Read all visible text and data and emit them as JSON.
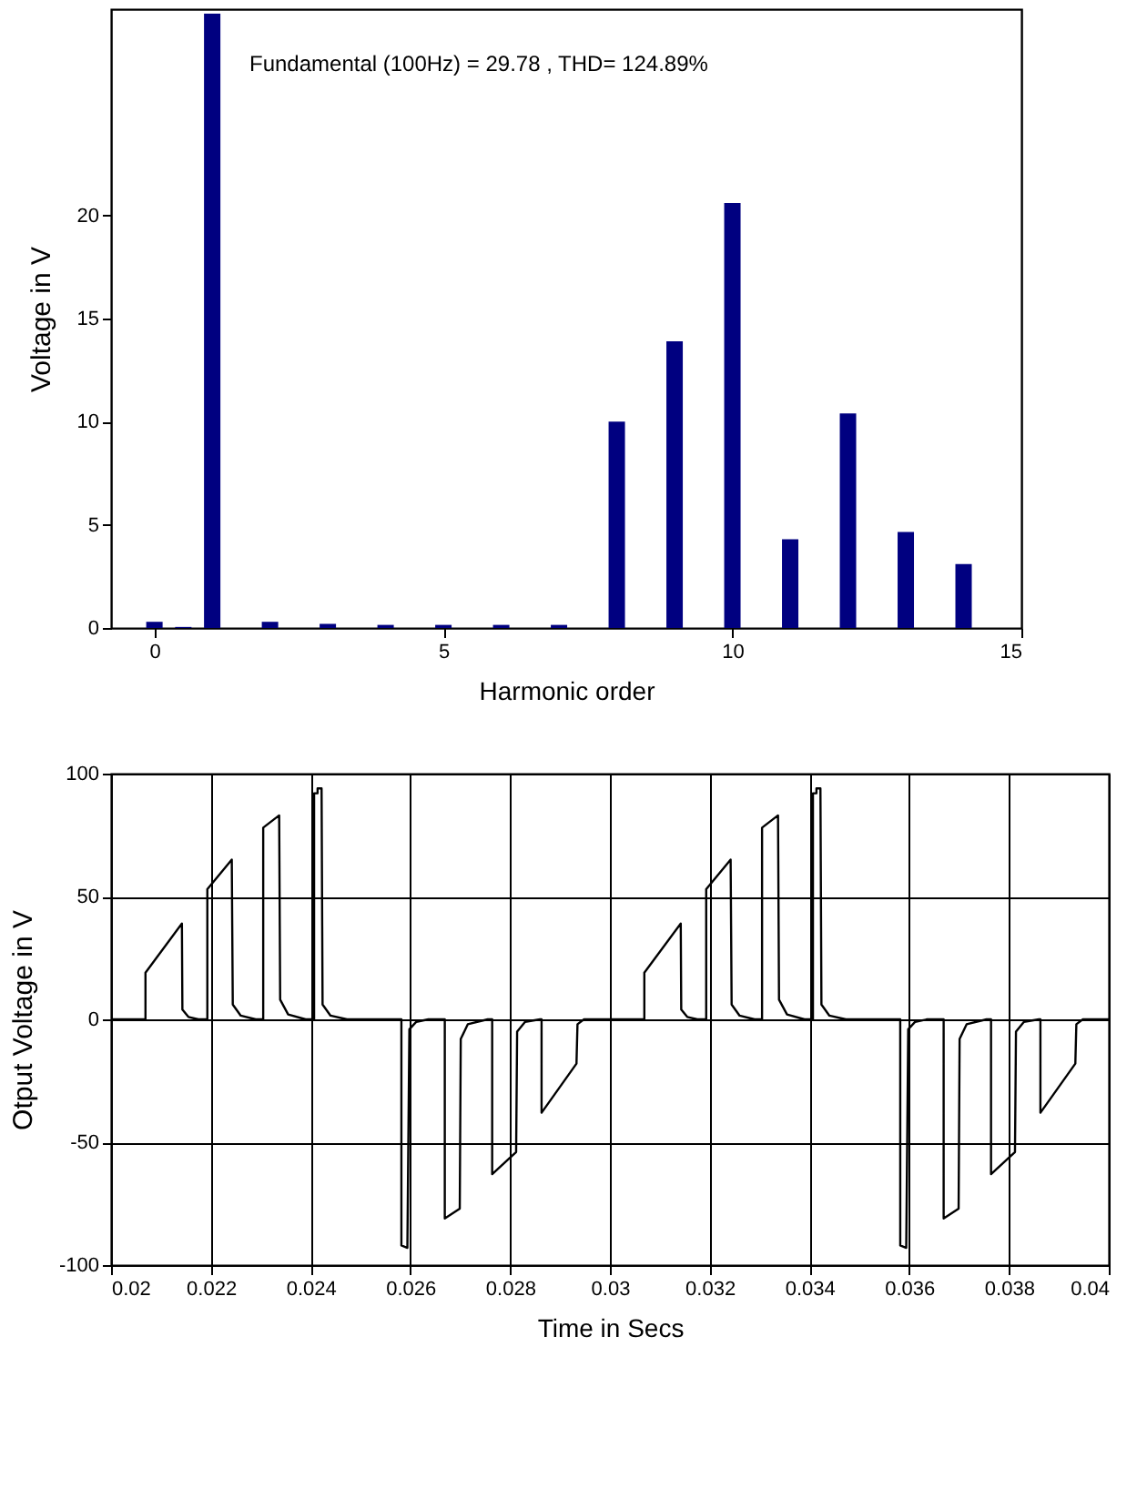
{
  "chart_data": [
    {
      "type": "bar",
      "x": [
        0,
        0.5,
        1,
        2,
        3,
        4,
        5,
        6,
        7,
        8,
        9,
        10,
        11,
        12,
        13,
        14
      ],
      "values": [
        0.3,
        0.05,
        29.78,
        0.3,
        0.2,
        0.15,
        0.15,
        0.15,
        0.15,
        10.0,
        13.9,
        20.6,
        4.3,
        10.4,
        4.65,
        3.1
      ],
      "color": "#000080",
      "xlabel": "Harmonic order",
      "ylabel": "Voltage in V",
      "xlim": [
        -0.75,
        15
      ],
      "ylim": [
        0,
        30
      ],
      "xticks": [
        0,
        5,
        10,
        15
      ],
      "yticks": [
        0,
        5,
        10,
        15,
        20
      ],
      "annotations": [
        "Fundamental (100Hz) = 29.78 , THD= 124.89%"
      ]
    },
    {
      "type": "line",
      "series": [
        {
          "color": "#000000",
          "x": [
            0.02,
            0.02069,
            0.02069,
            0.02142,
            0.02143,
            0.02155,
            0.02175,
            0.02193,
            0.02193,
            0.02242,
            0.02244,
            0.0226,
            0.0229,
            0.02305,
            0.02305,
            0.02337,
            0.02339,
            0.02355,
            0.0239,
            0.02407,
            0.02407,
            0.02414,
            0.02414,
            0.02422,
            0.02424,
            0.0244,
            0.02473,
            0.02582,
            0.02582,
            0.02594,
            0.02598,
            0.02612,
            0.02636,
            0.02669,
            0.02669,
            0.02699,
            0.02701,
            0.02715,
            0.02755,
            0.02764,
            0.02764,
            0.02812,
            0.02814,
            0.0283,
            0.0286,
            0.02863,
            0.02863,
            0.02933,
            0.02935,
            0.02948,
            0.03069,
            0.03069,
            0.03142,
            0.03143,
            0.03155,
            0.03175,
            0.03193,
            0.03193,
            0.03242,
            0.03244,
            0.0326,
            0.0329,
            0.03305,
            0.03305,
            0.03337,
            0.03339,
            0.03355,
            0.0339,
            0.03407,
            0.03407,
            0.03414,
            0.03414,
            0.03422,
            0.03424,
            0.0344,
            0.03473,
            0.03582,
            0.03582,
            0.03594,
            0.03598,
            0.03612,
            0.03636,
            0.03669,
            0.03669,
            0.03699,
            0.03701,
            0.03715,
            0.03755,
            0.03764,
            0.03764,
            0.03812,
            0.03814,
            0.0383,
            0.0386,
            0.03863,
            0.03863,
            0.03933,
            0.03935,
            0.03948,
            0.04
          ],
          "values": [
            0,
            0,
            19,
            39,
            4,
            1,
            0,
            0,
            53,
            65,
            6,
            1.5,
            0,
            0,
            78,
            83,
            8,
            2,
            0,
            0,
            92,
            92,
            94,
            94,
            6,
            1.5,
            0,
            0,
            -92,
            -93,
            -4,
            -1,
            0,
            0,
            -81,
            -77,
            -8,
            -2,
            0,
            0,
            -63,
            -54,
            -5,
            -1,
            0,
            0,
            -38,
            -18,
            -2,
            0,
            0,
            19,
            39,
            4,
            1,
            0,
            0,
            53,
            65,
            6,
            1.5,
            0,
            0,
            78,
            83,
            8,
            2,
            0,
            0,
            92,
            92,
            94,
            94,
            6,
            1.5,
            0,
            0,
            -92,
            -93,
            -4,
            -1,
            0,
            0,
            -81,
            -77,
            -8,
            -2,
            0,
            0,
            -63,
            -54,
            -5,
            -1,
            0,
            0,
            -38,
            -18,
            -2,
            0,
            0
          ]
        }
      ],
      "xlabel": "Time in Secs",
      "ylabel": "Otput Voltage in V",
      "xlim": [
        0.02,
        0.04
      ],
      "ylim": [
        -100,
        100
      ],
      "xticks": [
        0.02,
        0.022,
        0.024,
        0.026,
        0.028,
        0.03,
        0.032,
        0.034,
        0.036,
        0.038,
        0.04
      ],
      "yticks": [
        -100,
        -50,
        0,
        50,
        100
      ],
      "grid": true
    }
  ]
}
